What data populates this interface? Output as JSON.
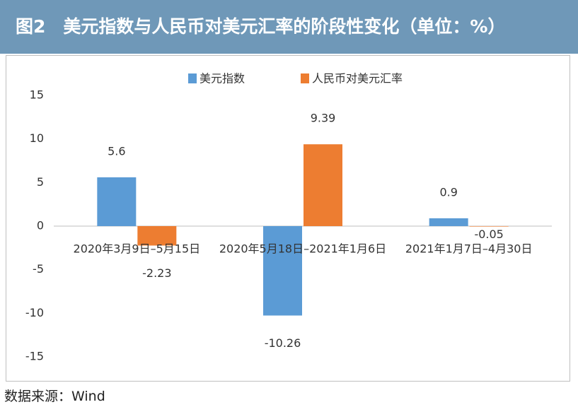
{
  "chart_data": {
    "type": "bar",
    "title": "图2　美元指数与人民币对美元汇率的阶段性变化（单位：%）",
    "source": "数据来源：Wind",
    "categories": [
      "2020年3月9日–5月15日",
      "2020年5月18日–2021年1月6日",
      "2021年1月7日–4月30日"
    ],
    "series": [
      {
        "name": "美元指数",
        "color": "#5b9bd5",
        "values": [
          5.6,
          -10.26,
          0.9
        ]
      },
      {
        "name": "人民币对美元汇率",
        "color": "#ed7d31",
        "values": [
          -2.23,
          9.39,
          -0.05
        ]
      }
    ],
    "ylim": [
      -15,
      15
    ],
    "yticks": [
      -15,
      -10,
      -5,
      0,
      5,
      10,
      15
    ],
    "grid": false,
    "legend": "top"
  }
}
